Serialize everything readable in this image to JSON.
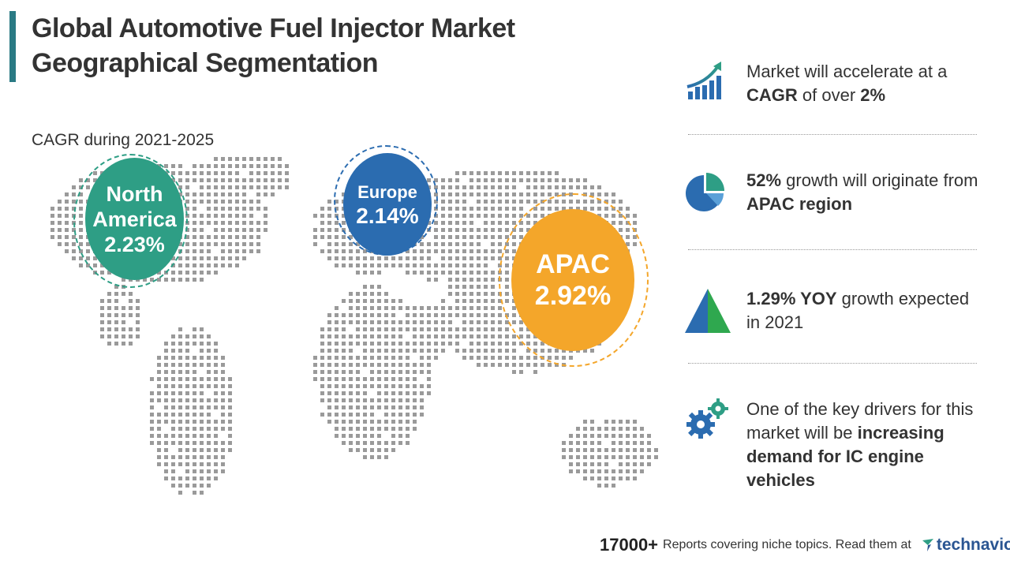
{
  "header": {
    "title_line1": "Global Automotive Fuel Injector Market",
    "title_line2": "Geographical Segmentation"
  },
  "map": {
    "cagr_label": "CAGR during 2021-2025",
    "regions": {
      "north_america": {
        "name_line1": "North",
        "name_line2": "America",
        "value": "2.23%",
        "color": "#2e9e85"
      },
      "europe": {
        "name": "Europe",
        "value": "2.14%",
        "color": "#2b6cb0"
      },
      "apac": {
        "name": "APAC",
        "value": "2.92%",
        "color": "#f4a62a"
      }
    }
  },
  "highlights": [
    {
      "icon": "growth-chart-icon",
      "pre": "Market will accelerate at a ",
      "bold1": "CAGR",
      "mid": " of over ",
      "bold2": "2%",
      "post": ""
    },
    {
      "icon": "pie-chart-icon",
      "bold1": "52%",
      "mid": " growth will originate from ",
      "bold2": "APAC region"
    },
    {
      "icon": "triangle-icon",
      "bold1": "1.29% YOY",
      "mid": " growth expected in 2021"
    },
    {
      "icon": "gears-icon",
      "pre": "One of the key drivers for this market will be ",
      "bold1": "increasing demand for IC engine vehicles"
    }
  ],
  "footer": {
    "count": "17000+",
    "description": "Reports covering niche topics. Read them at",
    "brand": "technavio"
  }
}
